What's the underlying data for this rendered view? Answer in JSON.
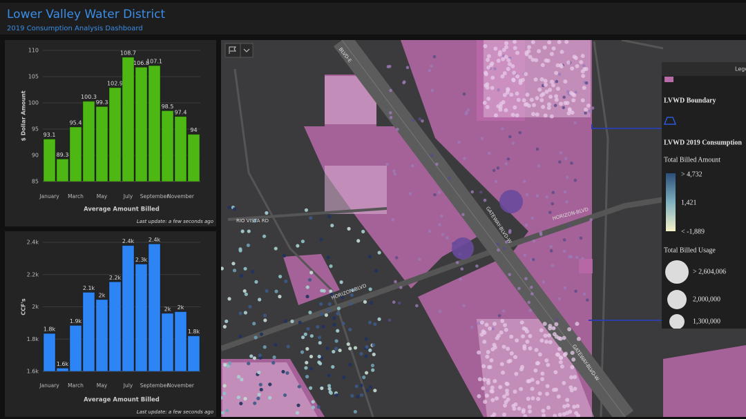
{
  "header": {
    "title": "Lower Valley Water District",
    "subtitle": "2019 Consumption Analysis Dashboard"
  },
  "chart_data": [
    {
      "type": "bar",
      "y_label": "$ Dollar Amount",
      "x_label": "Average Amount Billed",
      "footnote": "Last update: a few seconds ago",
      "categories": [
        "January",
        null,
        "March",
        null,
        "May",
        null,
        "July",
        null,
        "September",
        null,
        "November",
        null
      ],
      "values": [
        93.1,
        89.3,
        95.4,
        100.3,
        99.3,
        102.9,
        108.7,
        106.8,
        107.1,
        98.5,
        97.4,
        94
      ],
      "color": "#4db814",
      "ylim": [
        85,
        110
      ],
      "yticks": [
        85,
        90,
        95,
        100,
        105,
        110
      ],
      "grid": true
    },
    {
      "type": "bar",
      "y_label": "CCF's",
      "x_label": "Average Amount Billed",
      "footnote": "Last update: a few seconds ago",
      "categories": [
        "January",
        null,
        "March",
        null,
        "May",
        null,
        "July",
        null,
        "September",
        null,
        "November",
        null
      ],
      "values": [
        1835,
        1620,
        1885,
        2090,
        2045,
        2155,
        2380,
        2265,
        2390,
        1960,
        1970,
        1820
      ],
      "value_labels": [
        "1.8k",
        "1.6k",
        "1.9k",
        "2.1k",
        "2k",
        "2.2k",
        "2.4k",
        "2.3k",
        "2.4k",
        "2k",
        "2k",
        "1.8k"
      ],
      "color": "#2d84f5",
      "ylim": [
        1600,
        2400
      ],
      "yticks": [
        {
          "value": 1600,
          "label": "1.6k"
        },
        {
          "value": 1800,
          "label": "1.8k"
        },
        {
          "value": 2000,
          "label": "2k"
        },
        {
          "value": 2200,
          "label": "2.2k"
        },
        {
          "value": 2400,
          "label": "2.4k"
        }
      ],
      "grid": true
    }
  ],
  "map": {
    "roads": [
      "RIO VISTA RD",
      "HORIZON-BLVD",
      "HORIZON-BLVD",
      "GATEWAY-BLVD-W",
      "BLVD-E",
      "GATEWAY-BLVD-W"
    ],
    "legend": {
      "title": "Legend",
      "boundary": "LVWD Boundary",
      "layer": "LVWD 2019 Consumption",
      "amount_title": "Total Billed Amount",
      "amount_labels": [
        "> 4,732",
        "1,421",
        "< -1,889"
      ],
      "usage_title": "Total Billed Usage",
      "usage_labels": [
        "> 2,604,006",
        "2,000,000",
        "1,300,000"
      ]
    }
  }
}
